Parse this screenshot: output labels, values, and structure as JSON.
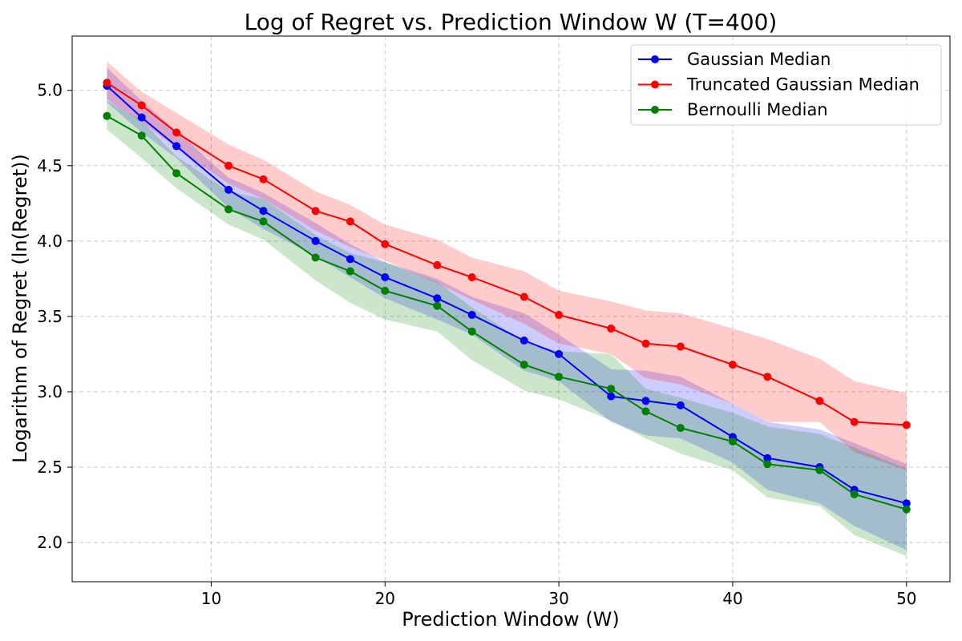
{
  "chart_data": {
    "type": "line",
    "title": "Log of Regret vs. Prediction Window W (T=400)",
    "xlabel": "Prediction Window (W)",
    "ylabel": "Logarithm of Regret (ln(Regret))",
    "xlim": [
      2,
      52.5
    ],
    "ylim": [
      1.74,
      5.36
    ],
    "x_ticks": [
      10,
      20,
      30,
      40,
      50
    ],
    "y_ticks": [
      2.0,
      2.5,
      3.0,
      3.5,
      4.0,
      4.5,
      5.0
    ],
    "x_tick_labels": [
      "10",
      "20",
      "30",
      "40",
      "50"
    ],
    "y_tick_labels": [
      "2.0",
      "2.5",
      "3.0",
      "3.5",
      "4.0",
      "4.5",
      "5.0"
    ],
    "grid": true,
    "legend_position": "top-right",
    "x": [
      4,
      6,
      8,
      11,
      13,
      16,
      18,
      20,
      23,
      25,
      28,
      30,
      33,
      35,
      37,
      40,
      42,
      45,
      47,
      50
    ],
    "series": [
      {
        "name": "Gaussian Median",
        "color": "#0000ff",
        "values": [
          5.03,
          4.82,
          4.63,
          4.34,
          4.2,
          4.0,
          3.88,
          3.76,
          3.62,
          3.51,
          3.34,
          3.25,
          2.97,
          2.94,
          2.91,
          2.7,
          2.56,
          2.5,
          2.35,
          2.26
        ],
        "band_upper": [
          5.15,
          4.93,
          4.73,
          4.42,
          4.32,
          4.12,
          3.98,
          3.86,
          3.75,
          3.63,
          3.52,
          3.38,
          3.15,
          3.14,
          3.1,
          2.92,
          2.8,
          2.75,
          2.66,
          2.52
        ],
        "band_lower": [
          4.92,
          4.72,
          4.55,
          4.22,
          4.08,
          3.9,
          3.76,
          3.62,
          3.48,
          3.38,
          3.14,
          3.07,
          2.8,
          2.71,
          2.69,
          2.53,
          2.35,
          2.26,
          2.11,
          1.95
        ]
      },
      {
        "name": "Truncated Gaussian Median",
        "color": "#ff0000",
        "values": [
          5.05,
          4.9,
          4.72,
          4.5,
          4.41,
          4.2,
          4.13,
          3.98,
          3.84,
          3.76,
          3.63,
          3.51,
          3.42,
          3.32,
          3.3,
          3.18,
          3.1,
          2.94,
          2.8,
          2.78
        ],
        "band_upper": [
          5.19,
          4.99,
          4.85,
          4.64,
          4.54,
          4.33,
          4.24,
          4.11,
          4.01,
          3.89,
          3.8,
          3.67,
          3.6,
          3.54,
          3.52,
          3.42,
          3.35,
          3.22,
          3.07,
          2.99
        ],
        "band_lower": [
          4.94,
          4.79,
          4.62,
          4.38,
          4.28,
          4.07,
          3.96,
          3.87,
          3.72,
          3.61,
          3.45,
          3.32,
          3.25,
          3.09,
          3.05,
          2.92,
          2.8,
          2.8,
          2.6,
          2.48
        ]
      },
      {
        "name": "Bernoulli Median",
        "color": "#008000",
        "values": [
          4.83,
          4.7,
          4.45,
          4.21,
          4.13,
          3.89,
          3.8,
          3.67,
          3.57,
          3.4,
          3.18,
          3.1,
          3.02,
          2.87,
          2.76,
          2.67,
          2.52,
          2.48,
          2.32,
          2.22
        ],
        "band_upper": [
          4.93,
          4.8,
          4.56,
          4.33,
          4.28,
          4.04,
          3.92,
          3.86,
          3.73,
          3.56,
          3.33,
          3.27,
          3.25,
          3.02,
          2.96,
          2.86,
          2.77,
          2.72,
          2.63,
          2.49
        ],
        "band_lower": [
          4.74,
          4.55,
          4.35,
          4.11,
          4.01,
          3.74,
          3.59,
          3.48,
          3.4,
          3.21,
          3.01,
          2.95,
          2.81,
          2.69,
          2.59,
          2.48,
          2.3,
          2.24,
          2.05,
          1.91
        ]
      }
    ]
  }
}
